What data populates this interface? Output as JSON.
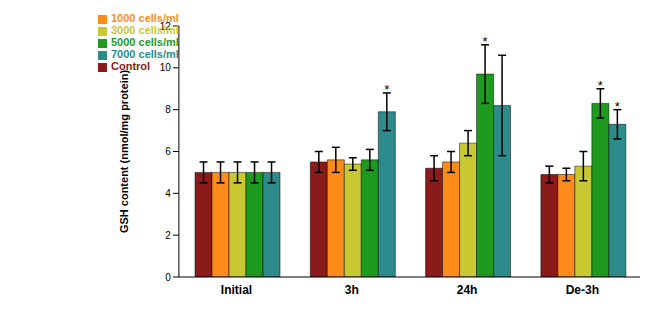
{
  "chart_data": {
    "type": "bar",
    "categories": [
      "Initial",
      "3h",
      "24h",
      "De-3h"
    ],
    "y_label": "GSH content (nmol/mg protein)",
    "ylim": [
      0,
      12
    ],
    "yticks": [
      0,
      2,
      4,
      6,
      8,
      10,
      12
    ],
    "grid": false,
    "legend": "upper left",
    "series": [
      {
        "name": "Control",
        "color": "#8b1a1a",
        "values": [
          5.0,
          5.5,
          5.2,
          4.9
        ],
        "errors": [
          0.5,
          0.5,
          0.6,
          0.4
        ]
      },
      {
        "name": "1000 cells/ml",
        "color": "#ff8c1a",
        "values": [
          5.0,
          5.6,
          5.5,
          4.9
        ],
        "errors": [
          0.5,
          0.6,
          0.5,
          0.3
        ]
      },
      {
        "name": "3000 cells/ml",
        "color": "#c8c832",
        "values": [
          5.0,
          5.4,
          6.4,
          5.3
        ],
        "errors": [
          0.5,
          0.3,
          0.6,
          0.7
        ]
      },
      {
        "name": "5000 cells/ml",
        "color": "#1e9b1e",
        "values": [
          5.0,
          5.6,
          9.7,
          8.3
        ],
        "errors": [
          0.5,
          0.5,
          1.4,
          0.7
        ]
      },
      {
        "name": "7000 cells/ml",
        "color": "#2e8b8b",
        "values": [
          5.0,
          7.9,
          8.2,
          7.3
        ],
        "errors": [
          0.5,
          0.9,
          2.4,
          0.7
        ]
      }
    ],
    "annotations": [
      {
        "category": "3h",
        "series": "7000 cells/ml",
        "text": "*"
      },
      {
        "category": "24h",
        "series": "5000 cells/ml",
        "text": "*"
      },
      {
        "category": "De-3h",
        "series": "5000 cells/ml",
        "text": "*"
      },
      {
        "category": "De-3h",
        "series": "7000 cells/ml",
        "text": "*"
      }
    ]
  }
}
